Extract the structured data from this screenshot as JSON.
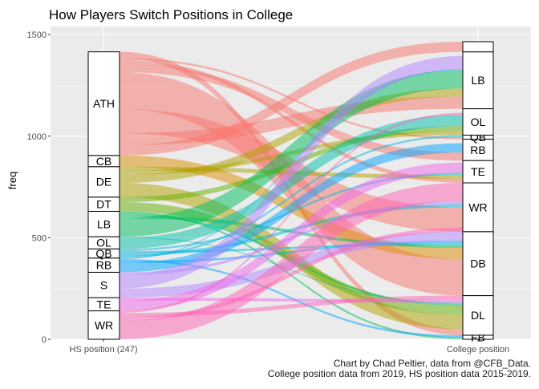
{
  "chart_data": {
    "type": "alluvial",
    "title": "How Players Switch Positions in College",
    "xlabel": "",
    "ylabel": "freq",
    "ylim": [
      0,
      1540
    ],
    "y_ticks": [
      0,
      500,
      1000,
      1500
    ],
    "grid": true,
    "axes": [
      "HS position (247)",
      "College position"
    ],
    "hs_strata": [
      {
        "label": "WR",
        "value": 140
      },
      {
        "label": "TE",
        "value": 65
      },
      {
        "label": "S",
        "value": 125
      },
      {
        "label": "RB",
        "value": 70
      },
      {
        "label": "QB",
        "value": 45
      },
      {
        "label": "OL",
        "value": 60
      },
      {
        "label": "LB",
        "value": 125
      },
      {
        "label": "DT",
        "value": 70
      },
      {
        "label": "DE",
        "value": 150
      },
      {
        "label": "CB",
        "value": 55
      },
      {
        "label": "ATH",
        "value": 510
      }
    ],
    "college_strata": [
      {
        "label": "FB",
        "value": 20
      },
      {
        "label": "DL",
        "value": 195
      },
      {
        "label": "DB",
        "value": 315
      },
      {
        "label": "WR",
        "value": 240
      },
      {
        "label": "TE",
        "value": 110
      },
      {
        "label": "RB",
        "value": 105
      },
      {
        "label": "QB",
        "value": 20
      },
      {
        "label": "OL",
        "value": 130
      },
      {
        "label": "LB",
        "value": 280
      },
      {
        "label": "",
        "value": 50
      }
    ],
    "captions": [
      "Chart by Chad Peltier, data from @CFB_Data.",
      "College position data from 2019, HS position data 2015-2019."
    ],
    "colors": {
      "ATH": "#f8766d",
      "CB": "#db8e00",
      "DE": "#aea200",
      "DT": "#64b200",
      "LB": "#00bd5c",
      "OL": "#00c1a7",
      "QB": "#00badE",
      "RB": "#00a6ff",
      "S": "#b385ff",
      "TE": "#ef67eb",
      "WR": "#ff63b6"
    }
  }
}
